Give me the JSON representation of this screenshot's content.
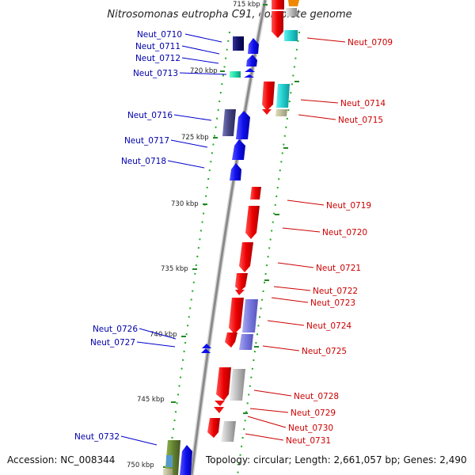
{
  "title": "Nitrosomonas eutropha C91, complete genome",
  "accession": "Accession: NC_008344",
  "topology": "Topology: circular; Length: 2,661,057 bp; Genes: 2,490",
  "scale_labels": [
    "715 kbp",
    "720 kbp",
    "725 kbp",
    "730 kbp",
    "735 kbp",
    "740 kbp",
    "745 kbp",
    "750 kbp"
  ],
  "left_labels": [
    "Neut_0710",
    "Neut_0711",
    "Neut_0712",
    "Neut_0713",
    "Neut_0716",
    "Neut_0717",
    "Neut_0718",
    "Neut_0726",
    "Neut_0727",
    "Neut_0732"
  ],
  "right_labels": [
    "Neut_0709",
    "Neut_0714",
    "Neut_0715",
    "Neut_0719",
    "Neut_0720",
    "Neut_0721",
    "Neut_0722",
    "Neut_0723",
    "Neut_0724",
    "Neut_0725",
    "Neut_0728",
    "Neut_0729",
    "Neut_0730",
    "Neut_0731"
  ],
  "colors": {
    "forward_gene": "#1010ee",
    "reverse_gene": "#ee1111",
    "backbone": "#999999",
    "scale_ticks": "#228822"
  }
}
